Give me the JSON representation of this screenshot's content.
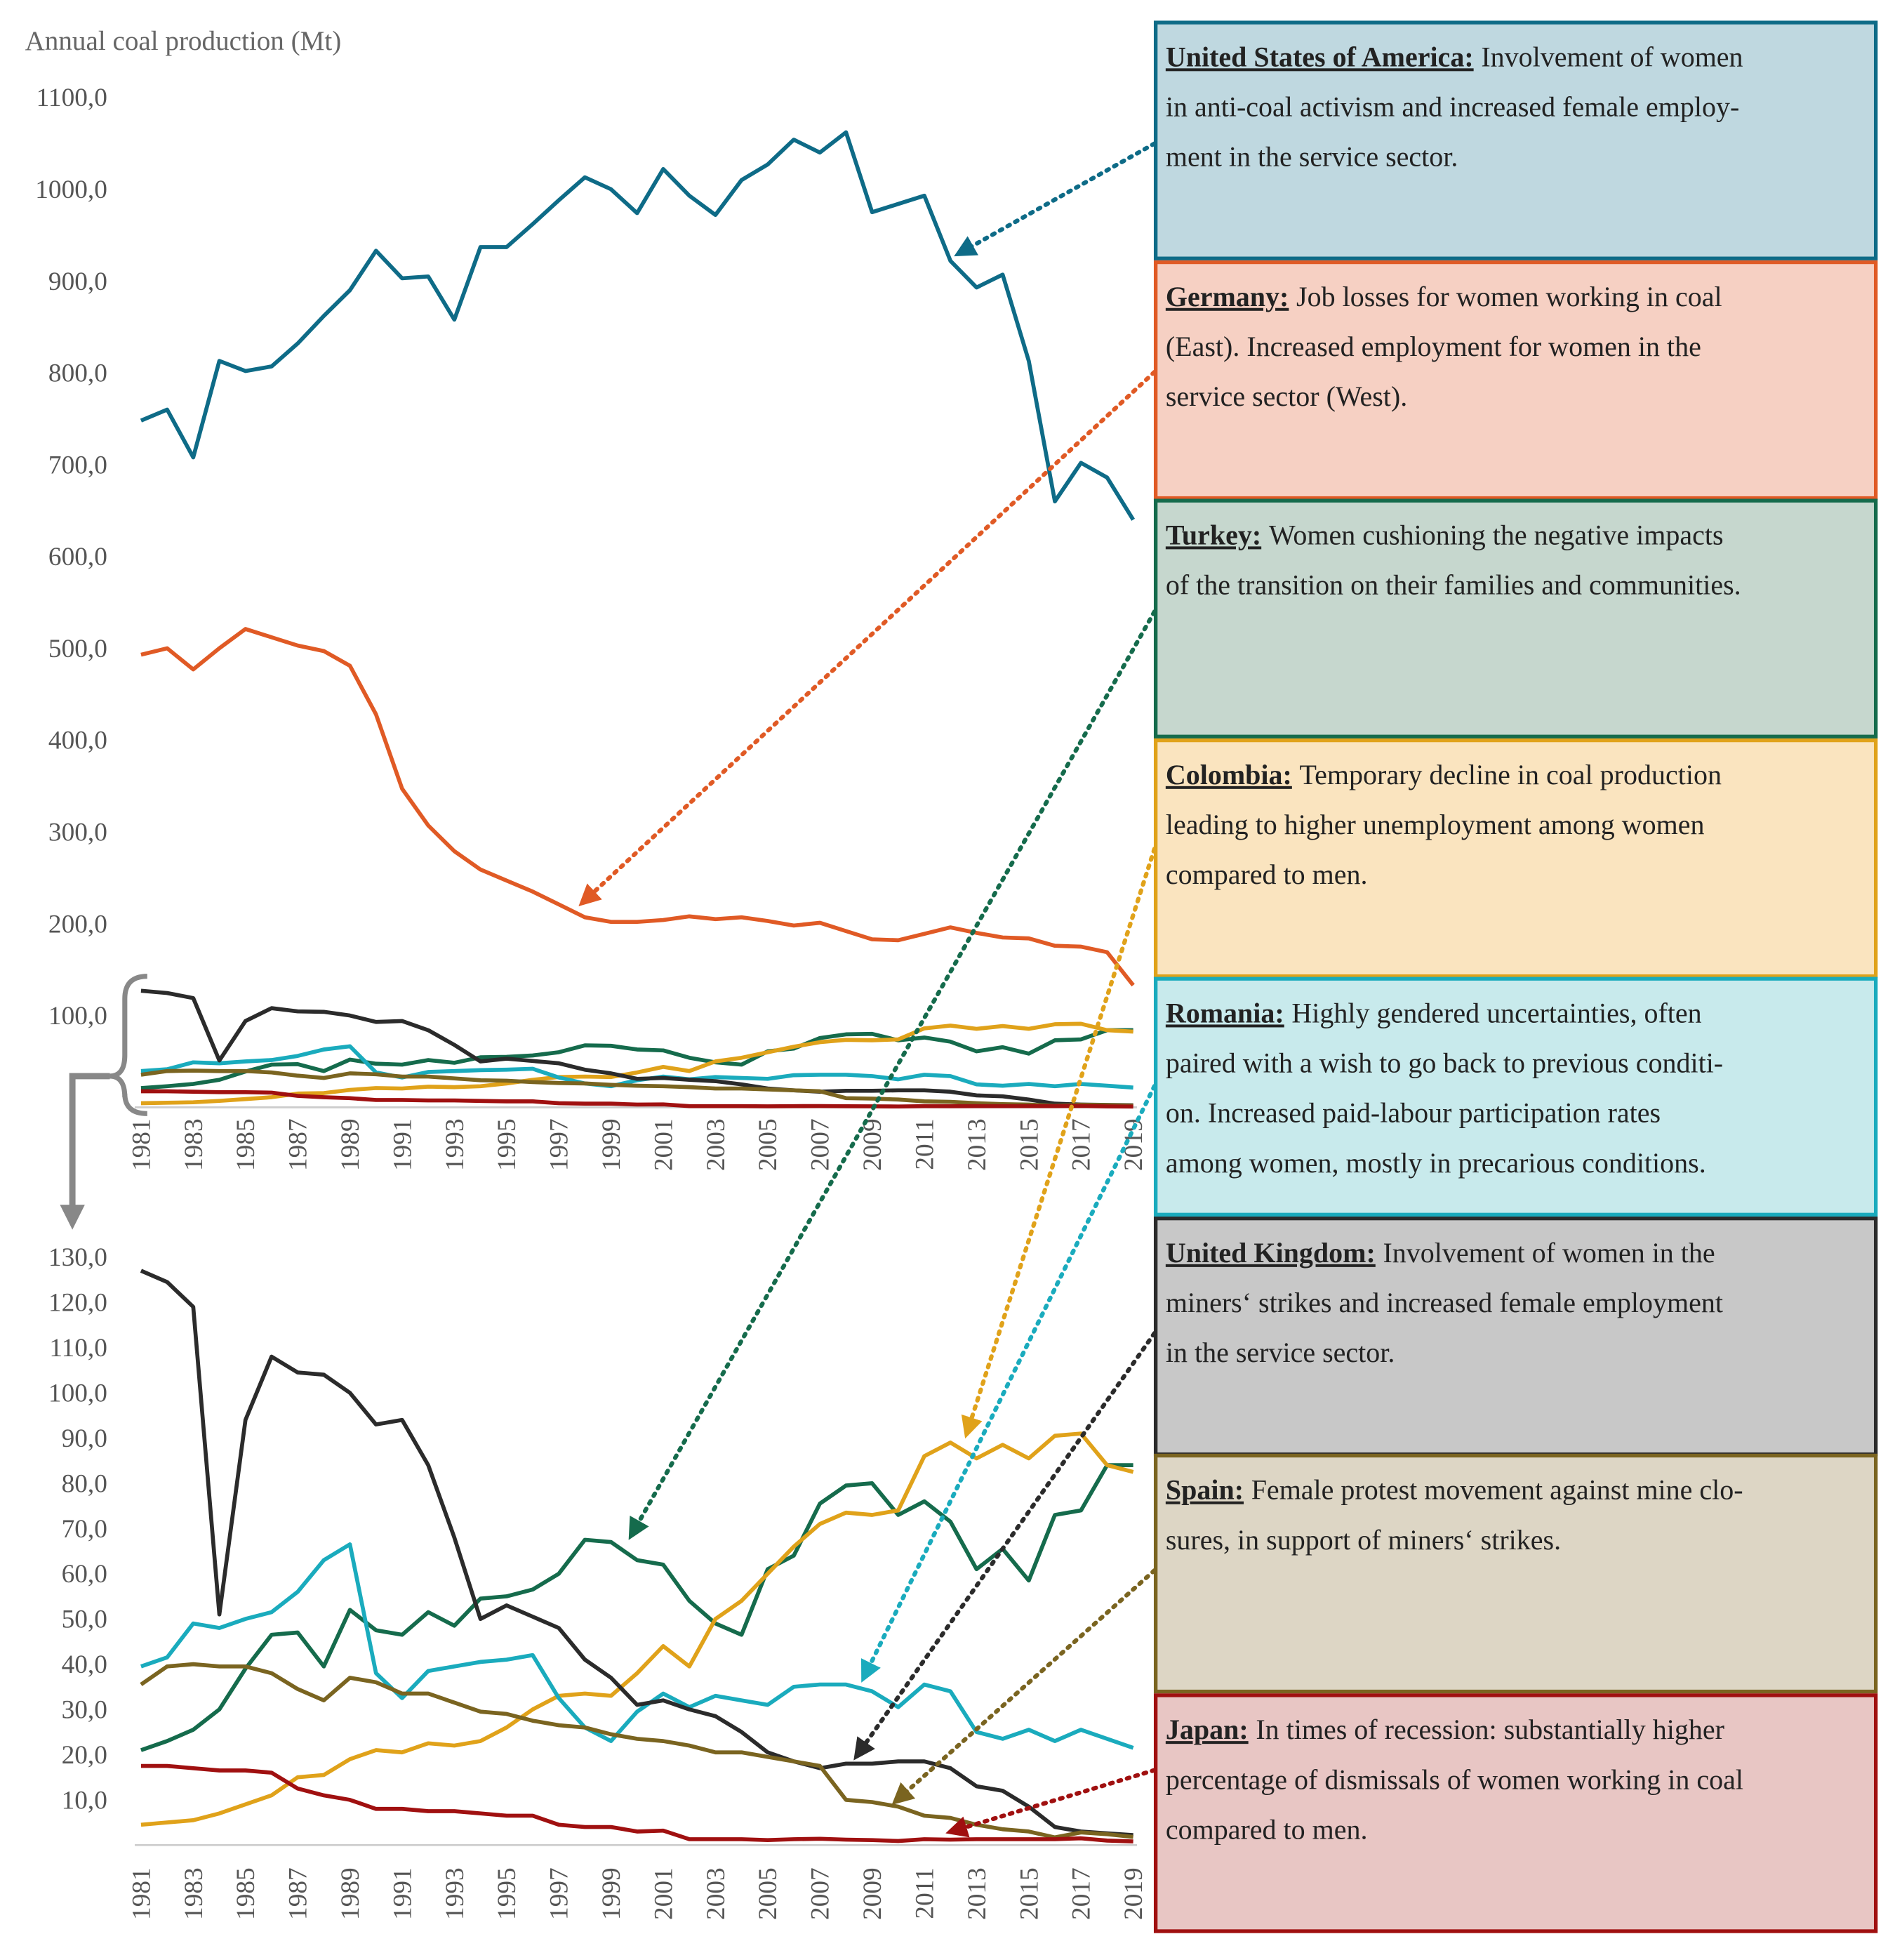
{
  "chart_data": [
    {
      "type": "line",
      "ylabel": "Annual coal production (Mt)",
      "x": [
        1981,
        1982,
        1983,
        1984,
        1985,
        1986,
        1987,
        1988,
        1989,
        1990,
        1991,
        1992,
        1993,
        1994,
        1995,
        1996,
        1997,
        1998,
        1999,
        2000,
        2001,
        2002,
        2003,
        2004,
        2005,
        2006,
        2007,
        2008,
        2009,
        2010,
        2011,
        2012,
        2013,
        2014,
        2015,
        2016,
        2017,
        2018,
        2019
      ],
      "xlim": [
        1981,
        2019
      ],
      "xticks": [
        1981,
        1983,
        1985,
        1987,
        1989,
        1991,
        1993,
        1995,
        1997,
        1999,
        2001,
        2003,
        2005,
        2007,
        2009,
        2011,
        2013,
        2015,
        2017,
        2019
      ],
      "ylim": [
        0,
        1100
      ],
      "yticks": [
        {
          "value": 100,
          "label": "100,0"
        },
        {
          "value": 200,
          "label": "200,0"
        },
        {
          "value": 300,
          "label": "300,0"
        },
        {
          "value": 400,
          "label": "400,0"
        },
        {
          "value": 500,
          "label": "500,0"
        },
        {
          "value": 600,
          "label": "600,0"
        },
        {
          "value": 700,
          "label": "700,0"
        },
        {
          "value": 800,
          "label": "800,0"
        },
        {
          "value": 900,
          "label": "900,0"
        },
        {
          "value": 1000,
          "label": "1000,0"
        },
        {
          "value": 1100,
          "label": "1100,0"
        }
      ],
      "grid": false,
      "series": [
        {
          "name": "United States of America",
          "color": "#0e6b87",
          "values": [
            748,
            760,
            708,
            813,
            802,
            807,
            832,
            862,
            890,
            933,
            903,
            905,
            858,
            937,
            937,
            962,
            988,
            1013,
            1000,
            974,
            1022,
            993,
            972,
            1010,
            1027,
            1054,
            1040,
            1062,
            975,
            984,
            993,
            922,
            893,
            907,
            813,
            660,
            702,
            686,
            640
          ]
        },
        {
          "name": "Germany",
          "color": "#e05a25",
          "values": [
            493,
            500,
            477,
            500,
            521,
            512,
            503,
            497,
            481,
            428,
            347,
            307,
            279,
            259,
            247,
            235,
            221,
            207,
            202,
            202,
            204,
            208,
            205,
            207,
            203,
            198,
            201,
            192,
            183,
            182,
            189,
            196,
            190,
            185,
            184,
            176,
            175,
            169,
            133
          ]
        },
        {
          "name": "Turkey",
          "color": "#156b4c",
          "values": [
            21,
            23,
            25.5,
            30,
            39,
            46.5,
            47,
            39.5,
            52,
            47.5,
            46.5,
            51.5,
            48.5,
            54.5,
            55,
            56.5,
            60,
            67.5,
            67,
            63,
            62,
            54,
            49,
            46.5,
            61,
            64,
            75.5,
            79.5,
            80,
            73,
            76,
            71.5,
            61,
            65.5,
            58.5,
            73,
            74,
            84,
            84
          ]
        },
        {
          "name": "Colombia",
          "color": "#e0a21a",
          "values": [
            4.5,
            5,
            5.5,
            7,
            9,
            11,
            15,
            15.5,
            19,
            21,
            20.5,
            22.5,
            22,
            23,
            26,
            30,
            33,
            33.5,
            33,
            38,
            44,
            39.5,
            50,
            54,
            60,
            66,
            71,
            73.5,
            73,
            74,
            86,
            89,
            85.5,
            88.5,
            85.5,
            90.5,
            91,
            84,
            82.5
          ]
        },
        {
          "name": "Romania",
          "color": "#1aabbd",
          "values": [
            39.5,
            41.5,
            49,
            48,
            50,
            51.5,
            56,
            63,
            66.5,
            38,
            32.5,
            38.5,
            39.5,
            40.5,
            41,
            42,
            32.5,
            26,
            23,
            29.5,
            33.5,
            30.5,
            33,
            32,
            31,
            35,
            35.5,
            35.5,
            34,
            30.5,
            35.5,
            34,
            25,
            23.5,
            25.5,
            23,
            25.5,
            23.5,
            21.5
          ]
        },
        {
          "name": "United Kingdom",
          "color": "#2b2b2b",
          "values": [
            127,
            124.5,
            119,
            51,
            94,
            108,
            104.5,
            104,
            100,
            93,
            94,
            84,
            68,
            50,
            53,
            50.5,
            48,
            41,
            37,
            31,
            32,
            30,
            28.5,
            25,
            20.5,
            18.5,
            17,
            18,
            18,
            18.5,
            18.5,
            17,
            13,
            12,
            8.5,
            4,
            3,
            2.6,
            2.2
          ]
        },
        {
          "name": "Spain",
          "color": "#7a6420",
          "values": [
            35.5,
            39.5,
            40,
            39.5,
            39.5,
            38,
            34.5,
            32,
            37,
            36,
            33.5,
            33.5,
            31.5,
            29.5,
            29,
            27.5,
            26.5,
            26,
            24.5,
            23.5,
            23,
            22,
            20.5,
            20.5,
            19.5,
            18.5,
            17.5,
            10,
            9.5,
            8.5,
            6.5,
            6,
            4.5,
            3.5,
            3,
            1.7,
            2.8,
            2.4,
            1.8
          ]
        },
        {
          "name": "Japan",
          "color": "#a01010",
          "values": [
            17.5,
            17.5,
            17,
            16.5,
            16.5,
            16,
            12.5,
            11,
            10,
            8,
            8,
            7.5,
            7.5,
            7,
            6.5,
            6.5,
            4.5,
            4,
            4,
            3,
            3.2,
            1.3,
            1.3,
            1.3,
            1.1,
            1.3,
            1.4,
            1.2,
            1.1,
            0.9,
            1.3,
            1.2,
            1.3,
            1.3,
            1.3,
            1.3,
            1.5,
            1.0,
            0.8
          ]
        }
      ]
    },
    {
      "type": "line",
      "x": [
        1981,
        1982,
        1983,
        1984,
        1985,
        1986,
        1987,
        1988,
        1989,
        1990,
        1991,
        1992,
        1993,
        1994,
        1995,
        1996,
        1997,
        1998,
        1999,
        2000,
        2001,
        2002,
        2003,
        2004,
        2005,
        2006,
        2007,
        2008,
        2009,
        2010,
        2011,
        2012,
        2013,
        2014,
        2015,
        2016,
        2017,
        2018,
        2019
      ],
      "xlim": [
        1981,
        2019
      ],
      "xticks": [
        1981,
        1983,
        1985,
        1987,
        1989,
        1991,
        1993,
        1995,
        1997,
        1999,
        2001,
        2003,
        2005,
        2007,
        2009,
        2011,
        2013,
        2015,
        2017,
        2019
      ],
      "ylim": [
        0,
        130
      ],
      "yticks": [
        {
          "value": 10,
          "label": "10,0"
        },
        {
          "value": 20,
          "label": "20,0"
        },
        {
          "value": 30,
          "label": "30,0"
        },
        {
          "value": 40,
          "label": "40,0"
        },
        {
          "value": 50,
          "label": "50,0"
        },
        {
          "value": 60,
          "label": "60,0"
        },
        {
          "value": 70,
          "label": "70,0"
        },
        {
          "value": 80,
          "label": "80,0"
        },
        {
          "value": 90,
          "label": "90,0"
        },
        {
          "value": 100,
          "label": "100,0"
        },
        {
          "value": 110,
          "label": "110,0"
        },
        {
          "value": 120,
          "label": "120,0"
        },
        {
          "value": 130,
          "label": "130,0"
        }
      ],
      "grid": false,
      "series": [
        {
          "name": "Turkey",
          "color": "#156b4c",
          "values": [
            21,
            23,
            25.5,
            30,
            39,
            46.5,
            47,
            39.5,
            52,
            47.5,
            46.5,
            51.5,
            48.5,
            54.5,
            55,
            56.5,
            60,
            67.5,
            67,
            63,
            62,
            54,
            49,
            46.5,
            61,
            64,
            75.5,
            79.5,
            80,
            73,
            76,
            71.5,
            61,
            65.5,
            58.5,
            73,
            74,
            84,
            84
          ]
        },
        {
          "name": "Colombia",
          "color": "#e0a21a",
          "values": [
            4.5,
            5,
            5.5,
            7,
            9,
            11,
            15,
            15.5,
            19,
            21,
            20.5,
            22.5,
            22,
            23,
            26,
            30,
            33,
            33.5,
            33,
            38,
            44,
            39.5,
            50,
            54,
            60,
            66,
            71,
            73.5,
            73,
            74,
            86,
            89,
            85.5,
            88.5,
            85.5,
            90.5,
            91,
            84,
            82.5
          ]
        },
        {
          "name": "Romania",
          "color": "#1aabbd",
          "values": [
            39.5,
            41.5,
            49,
            48,
            50,
            51.5,
            56,
            63,
            66.5,
            38,
            32.5,
            38.5,
            39.5,
            40.5,
            41,
            42,
            32.5,
            26,
            23,
            29.5,
            33.5,
            30.5,
            33,
            32,
            31,
            35,
            35.5,
            35.5,
            34,
            30.5,
            35.5,
            34,
            25,
            23.5,
            25.5,
            23,
            25.5,
            23.5,
            21.5
          ]
        },
        {
          "name": "United Kingdom",
          "color": "#2b2b2b",
          "values": [
            127,
            124.5,
            119,
            51,
            94,
            108,
            104.5,
            104,
            100,
            93,
            94,
            84,
            68,
            50,
            53,
            50.5,
            48,
            41,
            37,
            31,
            32,
            30,
            28.5,
            25,
            20.5,
            18.5,
            17,
            18,
            18,
            18.5,
            18.5,
            17,
            13,
            12,
            8.5,
            4,
            3,
            2.6,
            2.2
          ]
        },
        {
          "name": "Spain",
          "color": "#7a6420",
          "values": [
            35.5,
            39.5,
            40,
            39.5,
            39.5,
            38,
            34.5,
            32,
            37,
            36,
            33.5,
            33.5,
            31.5,
            29.5,
            29,
            27.5,
            26.5,
            26,
            24.5,
            23.5,
            23,
            22,
            20.5,
            20.5,
            19.5,
            18.5,
            17.5,
            10,
            9.5,
            8.5,
            6.5,
            6,
            4.5,
            3.5,
            3,
            1.7,
            2.8,
            2.4,
            1.8
          ]
        },
        {
          "name": "Japan",
          "color": "#a01010",
          "values": [
            17.5,
            17.5,
            17,
            16.5,
            16.5,
            16,
            12.5,
            11,
            10,
            8,
            8,
            7.5,
            7.5,
            7,
            6.5,
            6.5,
            4.5,
            4,
            4,
            3,
            3.2,
            1.3,
            1.3,
            1.3,
            1.1,
            1.3,
            1.4,
            1.2,
            1.1,
            0.9,
            1.3,
            1.2,
            1.3,
            1.3,
            1.3,
            1.3,
            1.5,
            1.0,
            0.8
          ]
        }
      ]
    }
  ],
  "annotations": [
    {
      "country": "United States of America:",
      "fill": "#bfd8e0",
      "border": "#0e6b87",
      "lines": [
        "Involvement of women",
        "in anti-coal activism and increased female employ-",
        "ment in the service sector."
      ]
    },
    {
      "country": "Germany:",
      "fill": "#f6d0c3",
      "border": "#e05a25",
      "lines": [
        "Job losses for women working in coal",
        "(East). Increased employment for women in the",
        "service sector (West)."
      ]
    },
    {
      "country": "Turkey:",
      "fill": "#c6d7ce",
      "border": "#156b4c",
      "lines": [
        "Women cushioning the negative impacts",
        "of the transition on their families and communities."
      ]
    },
    {
      "country": "Colombia:",
      "fill": "#fae4bf",
      "border": "#e0a21a",
      "lines": [
        "Temporary decline in coal production",
        "leading to higher unemployment among women",
        "compared to men."
      ]
    },
    {
      "country": "Romania:",
      "fill": "#c8eaec",
      "border": "#1aabbd",
      "lines": [
        "Highly gendered uncertainties, often",
        "paired with a wish to go back to previous conditi-",
        "on. Increased paid-labour participation rates",
        "among women, mostly in precarious conditions."
      ]
    },
    {
      "country": "United Kingdom:",
      "fill": "#c8c8c8",
      "border": "#2b2b2b",
      "lines": [
        "Involvement of women in the",
        "miners‘ strikes and increased female employment",
        "in the service sector."
      ]
    },
    {
      "country": "Spain:",
      "fill": "#ddd6c5",
      "border": "#7a6420",
      "lines": [
        "Female protest movement against mine clo-",
        "sures, in support of miners‘ strikes."
      ]
    },
    {
      "country": "Japan:",
      "fill": "#e8c6c4",
      "border": "#a01010",
      "lines": [
        "In times of recession: substantially higher",
        "percentage of dismissals of women working in coal",
        "compared to men."
      ]
    }
  ]
}
